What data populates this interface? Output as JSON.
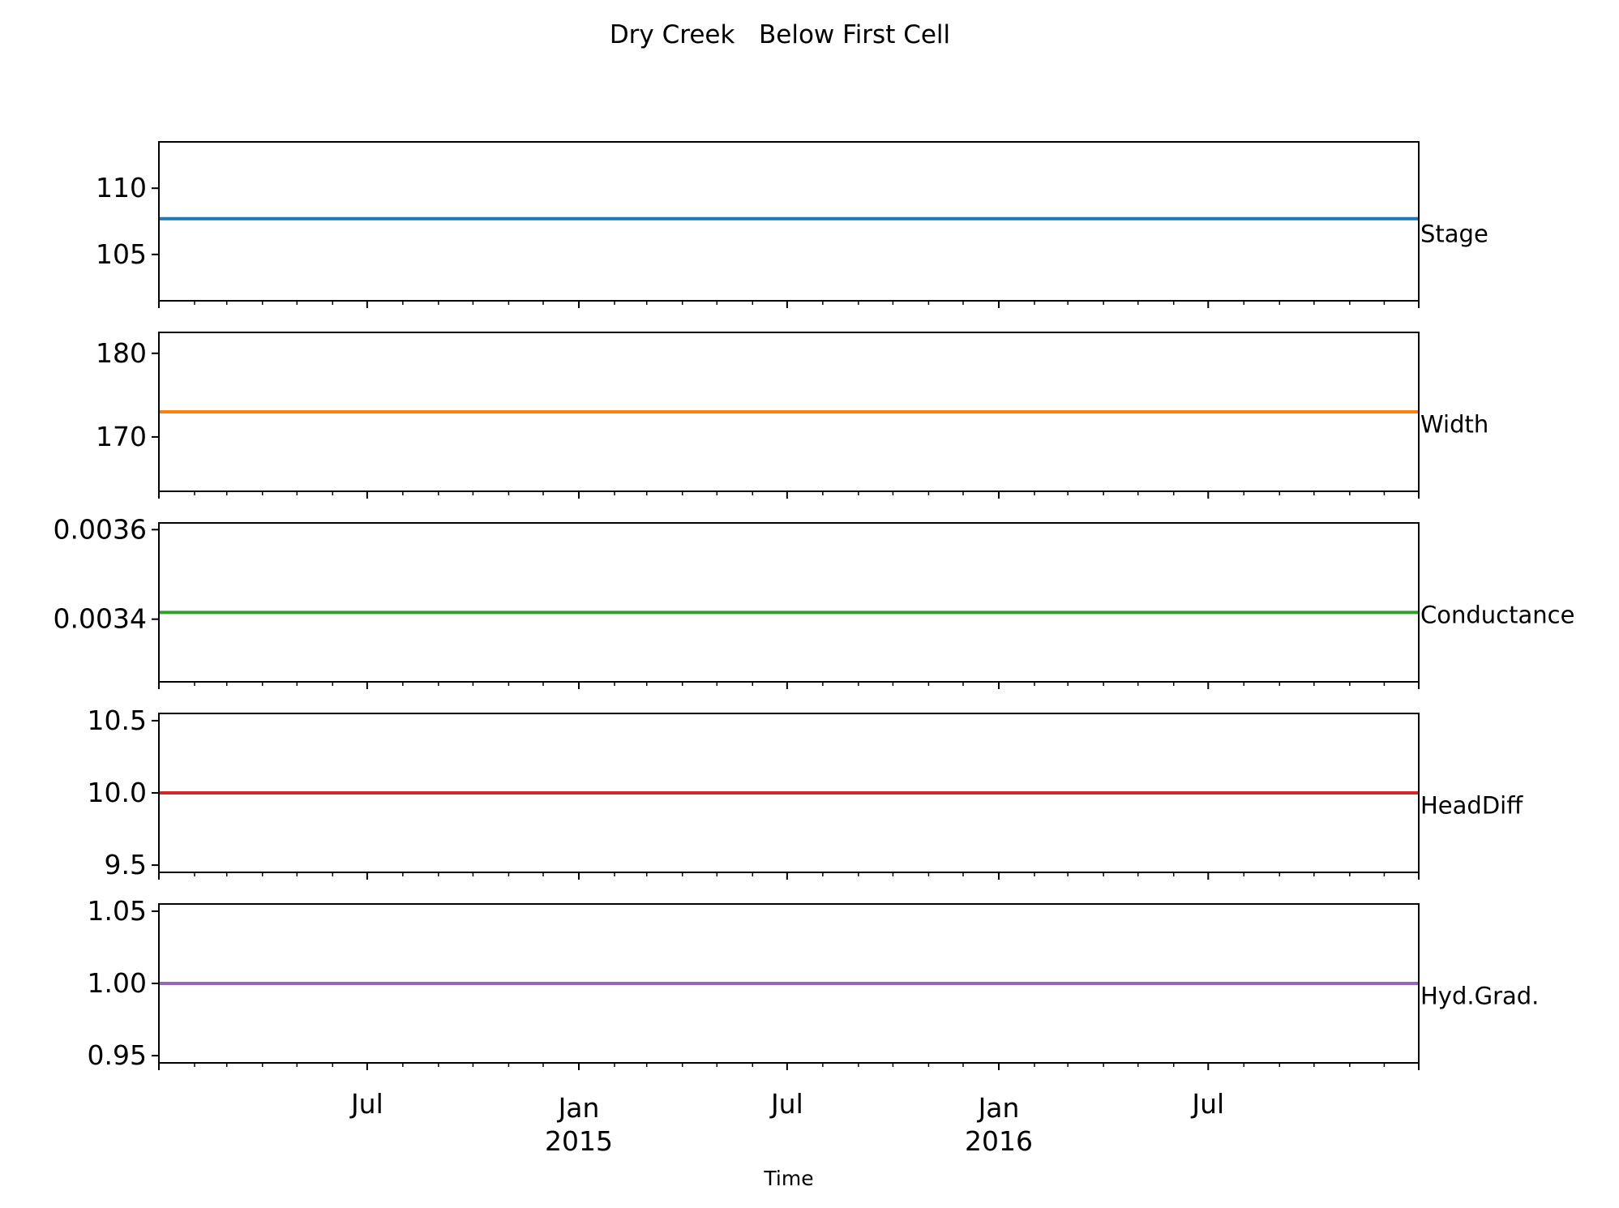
{
  "figure": {
    "title": "Dry Creek   Below First Cell",
    "xlabel": "Time"
  },
  "chart_data": {
    "type": "line",
    "title": "Dry Creek   Below First Cell",
    "xlabel": "Time",
    "x_range": [
      "2014-01-01",
      "2016-12-31"
    ],
    "x_major_ticks": [
      {
        "date": "2014-07-01",
        "label": "Jul",
        "sublabel": ""
      },
      {
        "date": "2015-01-01",
        "label": "Jan",
        "sublabel": "2015"
      },
      {
        "date": "2015-07-01",
        "label": "Jul",
        "sublabel": ""
      },
      {
        "date": "2016-01-01",
        "label": "Jan",
        "sublabel": "2016"
      },
      {
        "date": "2016-07-01",
        "label": "Jul",
        "sublabel": ""
      }
    ],
    "grid": false,
    "legend": "none",
    "panels": [
      {
        "ylabel": "Stage",
        "color": "#1f77b4",
        "ylim": [
          101.5,
          113.5
        ],
        "yticks": [
          105,
          110
        ],
        "ytick_labels": [
          "105",
          "110"
        ],
        "series": {
          "name": "Stage",
          "x": [
            "2014-01-01",
            "2016-12-31"
          ],
          "y": [
            107.7,
            107.7
          ]
        }
      },
      {
        "ylabel": "Width",
        "color": "#ff7f0e",
        "ylim": [
          163.5,
          182.5
        ],
        "yticks": [
          170,
          180
        ],
        "ytick_labels": [
          "170",
          "180"
        ],
        "series": {
          "name": "Width",
          "x": [
            "2014-01-01",
            "2016-12-31"
          ],
          "y": [
            173.0,
            173.0
          ]
        }
      },
      {
        "ylabel": "Conductance",
        "color": "#2ca02c",
        "ylim": [
          0.00326,
          0.003615
        ],
        "yticks": [
          0.0034,
          0.0036
        ],
        "ytick_labels": [
          "0.0034",
          "0.0036"
        ],
        "series": {
          "name": "Conductance",
          "x": [
            "2014-01-01",
            "2016-12-31"
          ],
          "y": [
            0.003415,
            0.003415
          ]
        }
      },
      {
        "ylabel": "HeadDiff",
        "color": "#d62728",
        "ylim": [
          9.45,
          10.55
        ],
        "yticks": [
          9.5,
          10.0,
          10.5
        ],
        "ytick_labels": [
          "9.5",
          "10.0",
          "10.5"
        ],
        "series": {
          "name": "HeadDiff",
          "x": [
            "2014-01-01",
            "2016-12-31"
          ],
          "y": [
            10.0,
            10.0
          ]
        }
      },
      {
        "ylabel": "Hyd.Grad.",
        "color": "#9467bd",
        "ylim": [
          0.945,
          1.055
        ],
        "yticks": [
          0.95,
          1.0,
          1.05
        ],
        "ytick_labels": [
          "0.95",
          "1.00",
          "1.05"
        ],
        "series": {
          "name": "Hyd.Grad.",
          "x": [
            "2014-01-01",
            "2016-12-31"
          ],
          "y": [
            1.0,
            1.0
          ]
        }
      }
    ]
  }
}
